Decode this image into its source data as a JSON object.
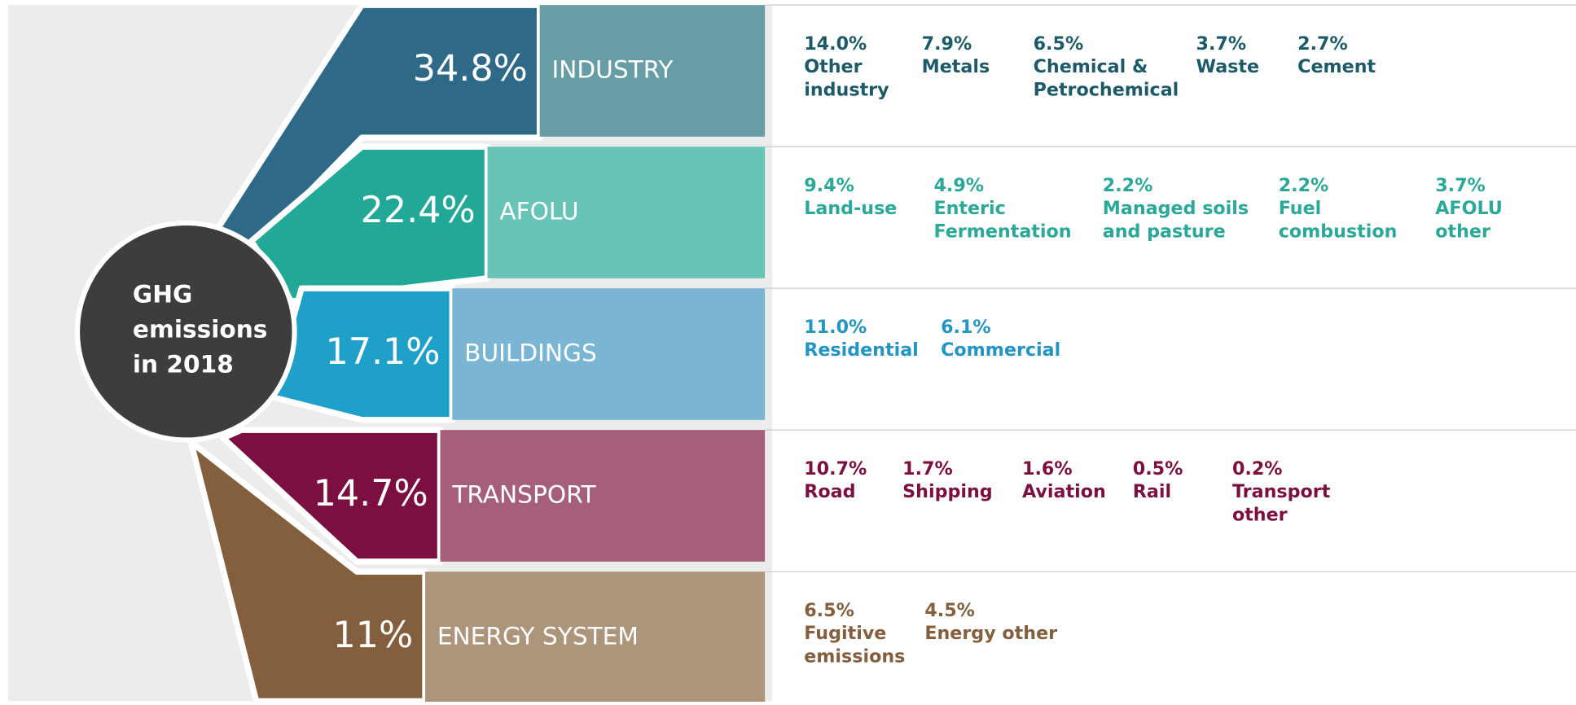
{
  "center": {
    "lines": [
      "GHG",
      "emissions",
      "in 2018"
    ]
  },
  "sectors": [
    {
      "share": "34.8%",
      "label": "INDUSTRY",
      "colors": {
        "dark": "#2e6a88",
        "light": "#679ea6",
        "text": "#1d5a68"
      },
      "items": [
        {
          "value": "14.0%",
          "name": [
            "Other",
            "industry"
          ]
        },
        {
          "value": "7.9%",
          "name": [
            "Metals"
          ]
        },
        {
          "value": "6.5%",
          "name": [
            "Chemical &",
            "Petrochemical"
          ]
        },
        {
          "value": "3.7%",
          "name": [
            "Waste"
          ]
        },
        {
          "value": "2.7%",
          "name": [
            "Cement"
          ]
        }
      ]
    },
    {
      "share": "22.4%",
      "label": "AFOLU",
      "colors": {
        "dark": "#22a896",
        "light": "#67c4b6",
        "text": "#2aa898"
      },
      "items": [
        {
          "value": "9.4%",
          "name": [
            "Land-use"
          ]
        },
        {
          "value": "4.9%",
          "name": [
            "Enteric",
            "Fermentation"
          ]
        },
        {
          "value": "2.2%",
          "name": [
            "Managed soils",
            "and pasture"
          ]
        },
        {
          "value": "2.2%",
          "name": [
            "Fuel",
            "combustion"
          ]
        },
        {
          "value": "3.7%",
          "name": [
            "AFOLU",
            "other"
          ]
        }
      ]
    },
    {
      "share": "17.1%",
      "label": "BUILDINGS",
      "colors": {
        "dark": "#1fa0c8",
        "light": "#7ab6d4",
        "text": "#2196c2"
      },
      "items": [
        {
          "value": "11.0%",
          "name": [
            "Residential"
          ]
        },
        {
          "value": "6.1%",
          "name": [
            "Commercial"
          ]
        }
      ]
    },
    {
      "share": "14.7%",
      "label": "TRANSPORT",
      "colors": {
        "dark": "#7b1040",
        "light": "#a55e7b",
        "text": "#7b1040"
      },
      "items": [
        {
          "value": "10.7%",
          "name": [
            "Road"
          ]
        },
        {
          "value": "1.7%",
          "name": [
            "Shipping"
          ]
        },
        {
          "value": "1.6%",
          "name": [
            "Aviation"
          ]
        },
        {
          "value": "0.5%",
          "name": [
            "Rail"
          ]
        },
        {
          "value": "0.2%",
          "name": [
            "Transport",
            "other"
          ]
        }
      ]
    },
    {
      "share": "11%",
      "label": "ENERGY SYSTEM",
      "colors": {
        "dark": "#845f3e",
        "light": "#ad957c",
        "text": "#845f3e"
      },
      "items": [
        {
          "value": "6.5%",
          "name": [
            "Fugitive",
            "emissions"
          ]
        },
        {
          "value": "4.5%",
          "name": [
            "Energy other"
          ]
        }
      ]
    }
  ]
}
